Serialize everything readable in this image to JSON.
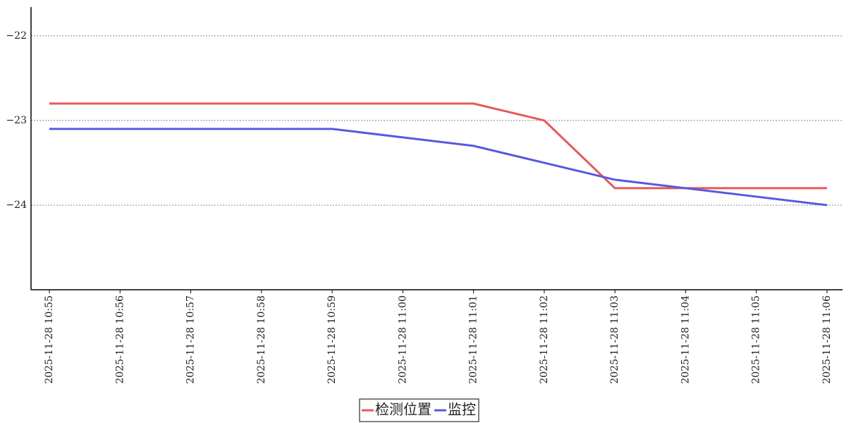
{
  "chart_data": {
    "type": "line",
    "categories": [
      "2025-11-28 10:55",
      "2025-11-28 10:56",
      "2025-11-28 10:57",
      "2025-11-28 10:58",
      "2025-11-28 10:59",
      "2025-11-28 11:00",
      "2025-11-28 11:01",
      "2025-11-28 11:02",
      "2025-11-28 11:03",
      "2025-11-28 11:04",
      "2025-11-28 11:05",
      "2025-11-28 11:06"
    ],
    "series": [
      {
        "name": "检测位置",
        "color": "#e85858",
        "values": [
          -22.8,
          -22.8,
          -22.8,
          -22.8,
          -22.8,
          -22.8,
          -22.8,
          -23.0,
          -23.8,
          -23.8,
          -23.8,
          -23.8
        ]
      },
      {
        "name": "监控",
        "color": "#5858e0",
        "values": [
          -23.1,
          -23.1,
          -23.1,
          -23.1,
          -23.1,
          -23.2,
          -23.3,
          -23.5,
          -23.7,
          -23.8,
          -23.9,
          -24.0
        ]
      }
    ],
    "ylim": [
      -25,
      -21.66
    ],
    "yticks": [
      {
        "value": -24,
        "label": "−24"
      },
      {
        "value": -23,
        "label": "−23"
      },
      {
        "value": -22,
        "label": "−22"
      }
    ],
    "grid": true
  }
}
